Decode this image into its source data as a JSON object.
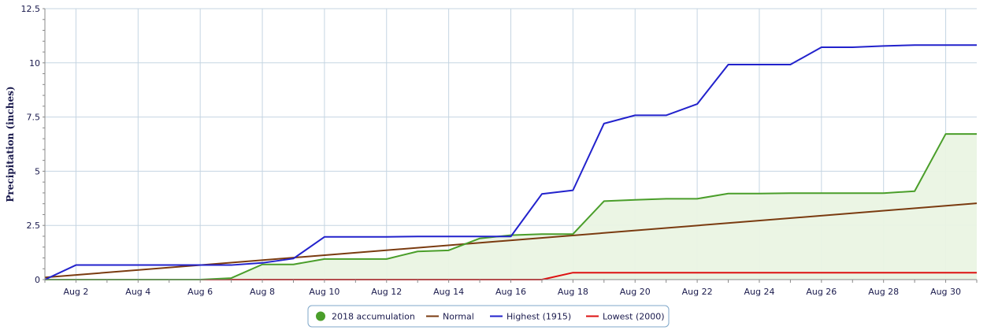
{
  "chart_data": {
    "type": "line",
    "ylabel": "Precipitation (inches)",
    "ylim": [
      0,
      12.5
    ],
    "yticks": [
      0,
      2.5,
      5,
      7.5,
      10,
      12.5
    ],
    "ytick_labels": [
      "0",
      "2.5",
      "5",
      "7.5",
      "10",
      "12.5"
    ],
    "xlim": [
      1,
      31
    ],
    "xticks": [
      2,
      4,
      6,
      8,
      10,
      12,
      14,
      16,
      18,
      20,
      22,
      24,
      26,
      28,
      30
    ],
    "xtick_labels": [
      "Aug 2",
      "Aug 4",
      "Aug 6",
      "Aug 8",
      "Aug 10",
      "Aug 12",
      "Aug 14",
      "Aug 16",
      "Aug 18",
      "Aug 20",
      "Aug 22",
      "Aug 24",
      "Aug 26",
      "Aug 28",
      "Aug 30"
    ],
    "grid": true,
    "legend_position": "bottom-center",
    "series": [
      {
        "name": "2018 accumulation",
        "color": "#4a9e2a",
        "fill": "#eaf4e3",
        "marker": "circle",
        "x": [
          1,
          2,
          3,
          4,
          5,
          6,
          7,
          8,
          9,
          10,
          11,
          12,
          13,
          14,
          15,
          16,
          17,
          18,
          19,
          20,
          21,
          22,
          23,
          24,
          25,
          26,
          27,
          28,
          29,
          30,
          31
        ],
        "y": [
          0,
          0,
          0,
          0,
          0,
          0,
          0.07,
          0.7,
          0.7,
          0.95,
          0.95,
          0.95,
          1.3,
          1.35,
          1.9,
          2.05,
          2.1,
          2.1,
          3.62,
          3.68,
          3.73,
          3.73,
          3.97,
          3.97,
          3.99,
          3.99,
          3.99,
          3.99,
          4.08,
          6.72,
          6.72
        ]
      },
      {
        "name": "Normal",
        "color": "#7a3b10",
        "x": [
          1,
          31
        ],
        "y": [
          0.1,
          3.52
        ]
      },
      {
        "name": "Highest (1915)",
        "color": "#2222cc",
        "x": [
          1,
          2,
          3,
          4,
          5,
          6,
          7,
          8,
          9,
          10,
          11,
          12,
          13,
          14,
          15,
          16,
          17,
          18,
          19,
          20,
          21,
          22,
          23,
          24,
          25,
          26,
          27,
          28,
          29,
          30,
          31
        ],
        "y": [
          0,
          0.67,
          0.67,
          0.67,
          0.67,
          0.67,
          0.67,
          0.77,
          0.97,
          1.97,
          1.97,
          1.97,
          1.99,
          1.99,
          1.99,
          1.99,
          3.95,
          4.12,
          7.2,
          7.58,
          7.58,
          8.1,
          9.92,
          9.92,
          9.92,
          10.72,
          10.72,
          10.78,
          10.82,
          10.82,
          10.82
        ]
      },
      {
        "name": "Lowest (2000)",
        "color": "#dd1111",
        "x": [
          1,
          17,
          18,
          31
        ],
        "y": [
          0,
          0,
          0.32,
          0.32
        ]
      }
    ]
  }
}
